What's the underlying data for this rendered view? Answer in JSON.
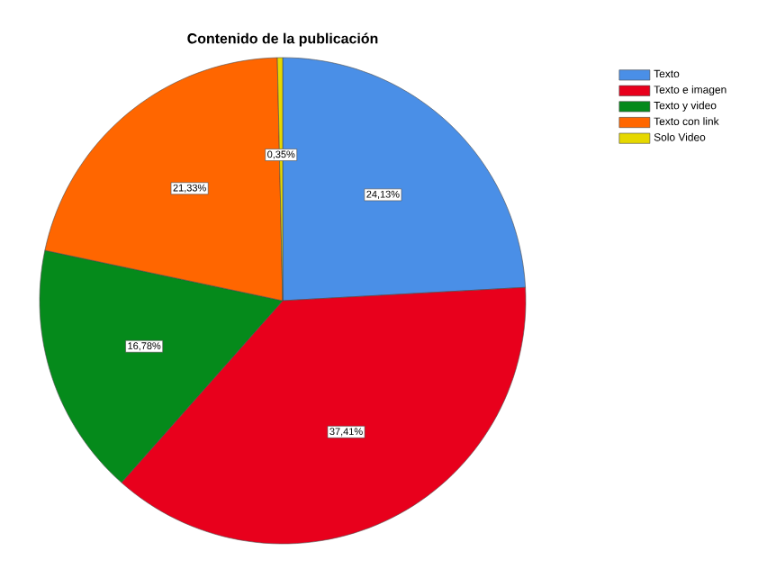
{
  "chart_data": {
    "type": "pie",
    "title": "Contenido de la publicación",
    "categories": [
      "Texto",
      "Texto e imagen",
      "Texto y video",
      "Texto con link",
      "Solo Video"
    ],
    "values": [
      24.13,
      37.41,
      16.78,
      21.33,
      0.35
    ],
    "value_labels": [
      "24,13%",
      "37,41%",
      "16,78%",
      "21,33%",
      "0,35%"
    ],
    "colors": [
      "#4a8fe7",
      "#e8001c",
      "#058a1b",
      "#ff6600",
      "#e6d800"
    ],
    "legend": "top right"
  }
}
